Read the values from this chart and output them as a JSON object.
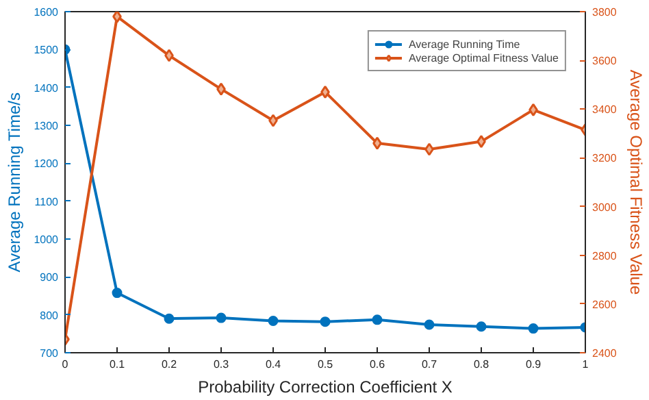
{
  "chart_data": {
    "type": "line",
    "xlabel": "Probability Correction Coefficient X",
    "ylabel": "Average Running Time/s",
    "y2label": "Average Optimal Fitness Value",
    "x": [
      0,
      0.1,
      0.2,
      0.3,
      0.4,
      0.5,
      0.6,
      0.7,
      0.8,
      0.9,
      1
    ],
    "series": [
      {
        "name": "Average Running Time",
        "color": "#0072bd",
        "marker": "circle",
        "values": [
          1500,
          858,
          790,
          792,
          784,
          782,
          787,
          774,
          769,
          764,
          767
        ]
      },
      {
        "name": "Average Optimal Fitness Value",
        "color": "#d95319",
        "marker": "diamond",
        "axis": "y2",
        "values": [
          2455,
          3780,
          3620,
          3482,
          3353,
          3470,
          3260,
          3235,
          3267,
          3397,
          3315
        ]
      }
    ],
    "xlim": [
      0,
      1
    ],
    "xticks": [
      0,
      0.1,
      0.2,
      0.3,
      0.4,
      0.5,
      0.6,
      0.7,
      0.8,
      0.9,
      1
    ],
    "ylim": [
      700,
      1600
    ],
    "yticks": [
      700,
      800,
      900,
      1000,
      1100,
      1200,
      1300,
      1400,
      1500,
      1600
    ],
    "y2lim": [
      2400,
      3800
    ],
    "y2ticks": [
      2400,
      2600,
      2800,
      3000,
      3200,
      3400,
      3600,
      3800
    ],
    "legend": "top right",
    "grid": false,
    "line_style": "solid"
  }
}
